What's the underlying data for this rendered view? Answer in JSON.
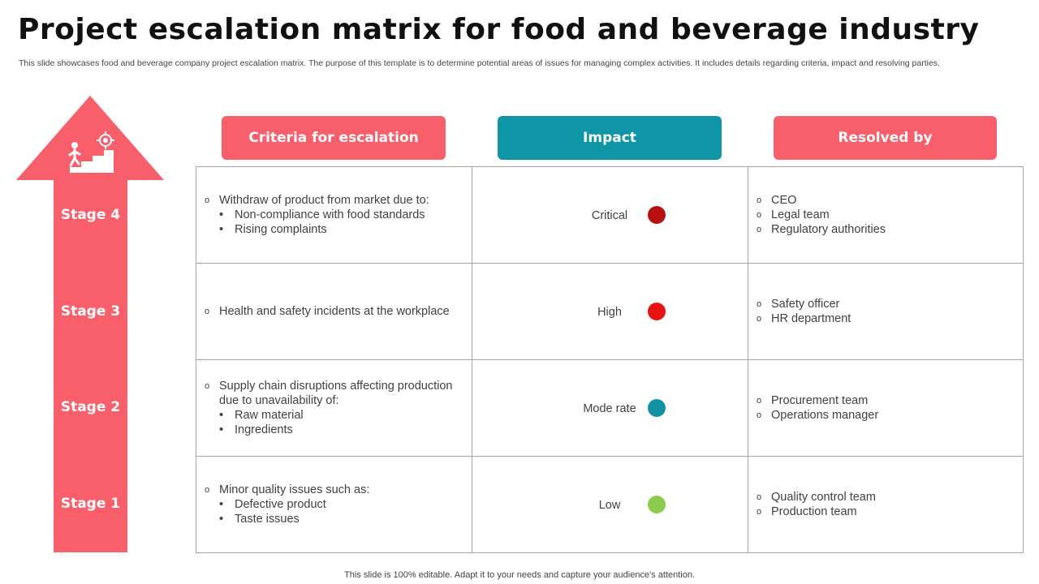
{
  "title": "Project escalation matrix for food and beverage industry",
  "subtitle": "This slide showcases food and beverage company project escalation matrix. The purpose of this template is to determine potential areas of issues for managing complex activities. It includes details regarding criteria, impact and resolving parties.",
  "headers": {
    "criteria": "Criteria for escalation",
    "impact": "Impact",
    "resolved": "Resolved by"
  },
  "colors": {
    "coral": "#F95F6A",
    "teal": "#0E96A6",
    "critical": "#B71010",
    "high": "#E81414",
    "moderate": "#1193A5",
    "low": "#8CCB4C"
  },
  "icons": {
    "arrow_icon": "person-climbing-stairs-target-icon"
  },
  "stages": [
    {
      "label": "Stage 4",
      "criteria": {
        "main": "Withdraw of product from market due to:",
        "subs": [
          "Non-compliance with food standards",
          "Rising complaints"
        ]
      },
      "impact": "Critical",
      "resolved_by": [
        "CEO",
        "Legal team",
        "Regulatory authorities"
      ]
    },
    {
      "label": "Stage 3",
      "criteria": {
        "main": "Health and safety incidents at the workplace",
        "subs": []
      },
      "impact": "High",
      "resolved_by": [
        "Safety officer",
        "HR department"
      ]
    },
    {
      "label": "Stage 2",
      "criteria": {
        "main_lines": [
          "Supply chain disruptions affecting production",
          "due to unavailability of:"
        ],
        "subs": [
          "Raw material",
          "Ingredients"
        ]
      },
      "impact": "Mode rate",
      "resolved_by": [
        "Procurement team",
        "Operations manager"
      ]
    },
    {
      "label": "Stage 1",
      "criteria": {
        "main": "Minor quality issues such as:",
        "subs": [
          "Defective product",
          "Taste issues"
        ]
      },
      "impact": "Low",
      "resolved_by": [
        "Quality control team",
        "Production team"
      ]
    }
  ],
  "footer": "This slide is 100% editable. Adapt it to your needs and capture your audience's attention."
}
